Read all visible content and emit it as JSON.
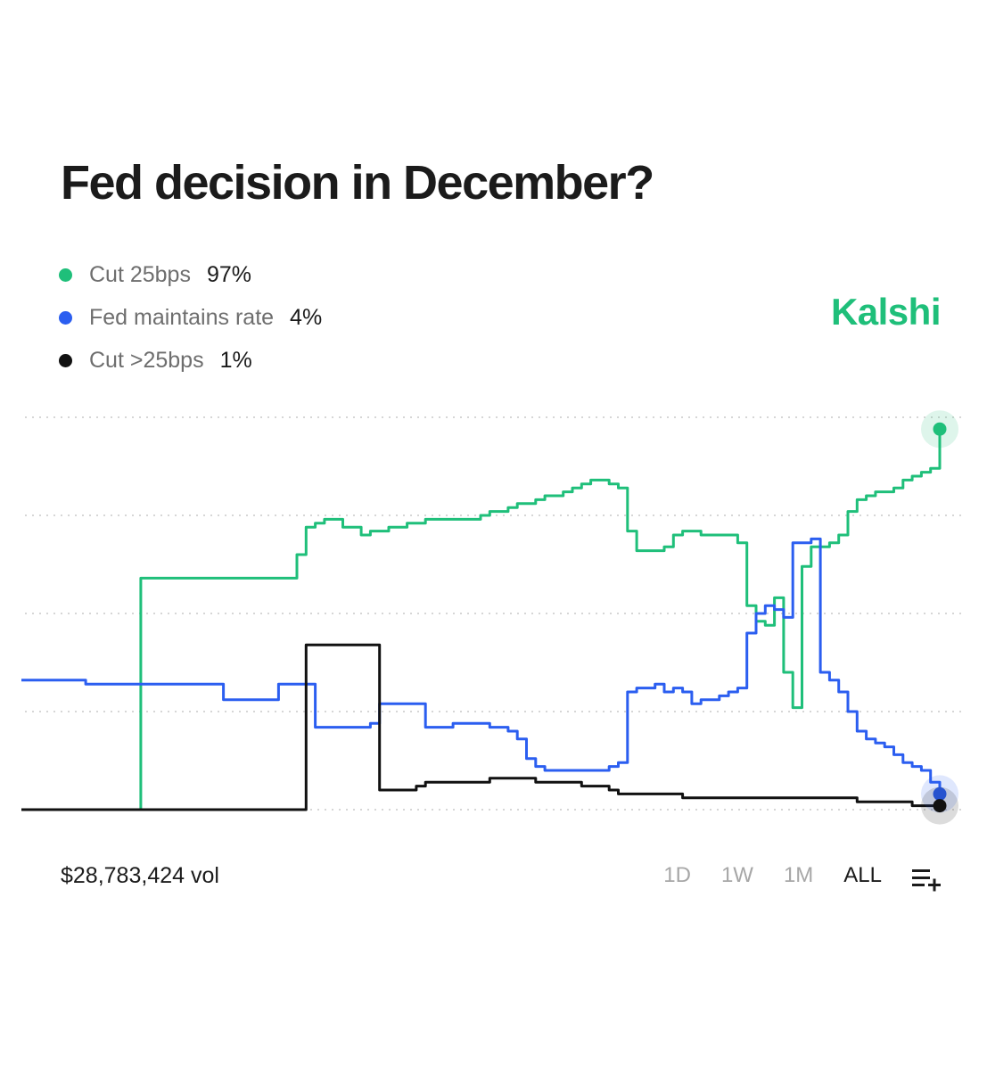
{
  "title": "Fed decision in December?",
  "brand": "Kalshi",
  "legend": [
    {
      "label": "Cut 25bps",
      "value": "97%",
      "color": "#1fbf7a"
    },
    {
      "label": "Fed maintains rate",
      "value": "4%",
      "color": "#2b5ef0"
    },
    {
      "label": "Cut >25bps",
      "value": "1%",
      "color": "#111111"
    }
  ],
  "volume": "$28,783,424 vol",
  "ranges": [
    {
      "label": "1D",
      "active": false
    },
    {
      "label": "1W",
      "active": false
    },
    {
      "label": "1M",
      "active": false
    },
    {
      "label": "ALL",
      "active": true
    }
  ],
  "settings_icon": "list-add-icon",
  "chart_data": {
    "type": "line",
    "title": "Fed decision in December?",
    "xlabel": "",
    "ylabel": "",
    "x": [
      0,
      1,
      2,
      3,
      4,
      5,
      6,
      7,
      8,
      9,
      10,
      11,
      12,
      13,
      14,
      15,
      16,
      17,
      18,
      19,
      20,
      21,
      22,
      23,
      24,
      25,
      26,
      27,
      28,
      29,
      30,
      31,
      32,
      33,
      34,
      35,
      36,
      37,
      38,
      39,
      40,
      41,
      42,
      43,
      44,
      45,
      46,
      47,
      48,
      49,
      50,
      51,
      52,
      53,
      54,
      55,
      56,
      57,
      58,
      59,
      60,
      61,
      62,
      63,
      64,
      65,
      66,
      67,
      68,
      69,
      70,
      71,
      72,
      73,
      74,
      75,
      76,
      77,
      78,
      79,
      80,
      81,
      82,
      83,
      84,
      85,
      86,
      87,
      88,
      89,
      90,
      91,
      92,
      93,
      94,
      95,
      96,
      97,
      98,
      99,
      100
    ],
    "ylim": [
      0,
      100
    ],
    "grid": true,
    "series": [
      {
        "name": "Cut 25bps",
        "color": "#1fbf7a",
        "values": [
          0,
          0,
          0,
          0,
          0,
          0,
          0,
          0,
          0,
          0,
          0,
          0,
          0,
          59,
          59,
          59,
          59,
          59,
          59,
          59,
          59,
          59,
          59,
          59,
          59,
          59,
          59,
          59,
          59,
          59,
          65,
          72,
          73,
          74,
          74,
          72,
          72,
          70,
          71,
          71,
          72,
          72,
          73,
          73,
          74,
          74,
          74,
          74,
          74,
          74,
          75,
          76,
          76,
          77,
          78,
          78,
          79,
          80,
          80,
          81,
          82,
          83,
          84,
          84,
          83,
          82,
          71,
          66,
          66,
          66,
          67,
          70,
          71,
          71,
          70,
          70,
          70,
          70,
          68,
          52,
          48,
          47,
          54,
          35,
          26,
          62,
          67,
          67,
          68,
          70,
          76,
          79,
          80,
          81,
          81,
          82,
          84,
          85,
          86,
          87,
          97
        ]
      },
      {
        "name": "Fed maintains rate",
        "color": "#2b5ef0",
        "values": [
          33,
          33,
          33,
          33,
          33,
          33,
          33,
          32,
          32,
          32,
          32,
          32,
          32,
          32,
          32,
          32,
          32,
          32,
          32,
          32,
          32,
          32,
          28,
          28,
          28,
          28,
          28,
          28,
          32,
          32,
          32,
          32,
          21,
          21,
          21,
          21,
          21,
          21,
          22,
          27,
          27,
          27,
          27,
          27,
          21,
          21,
          21,
          22,
          22,
          22,
          22,
          21,
          21,
          20,
          18,
          13,
          11,
          10,
          10,
          10,
          10,
          10,
          10,
          10,
          11,
          12,
          30,
          31,
          31,
          32,
          30,
          31,
          30,
          27,
          28,
          28,
          29,
          30,
          31,
          45,
          50,
          52,
          51,
          49,
          68,
          68,
          69,
          35,
          33,
          30,
          25,
          20,
          18,
          17,
          16,
          14,
          12,
          11,
          10,
          7,
          4
        ]
      },
      {
        "name": "Cut >25bps",
        "color": "#111111",
        "values": [
          0,
          0,
          0,
          0,
          0,
          0,
          0,
          0,
          0,
          0,
          0,
          0,
          0,
          0,
          0,
          0,
          0,
          0,
          0,
          0,
          0,
          0,
          0,
          0,
          0,
          0,
          0,
          0,
          0,
          0,
          0,
          42,
          42,
          42,
          42,
          42,
          42,
          42,
          42,
          5,
          5,
          5,
          5,
          6,
          7,
          7,
          7,
          7,
          7,
          7,
          7,
          8,
          8,
          8,
          8,
          8,
          7,
          7,
          7,
          7,
          7,
          6,
          6,
          6,
          5,
          4,
          4,
          4,
          4,
          4,
          4,
          4,
          3,
          3,
          3,
          3,
          3,
          3,
          3,
          3,
          3,
          3,
          3,
          3,
          3,
          3,
          3,
          3,
          3,
          3,
          3,
          2,
          2,
          2,
          2,
          2,
          2,
          1,
          1,
          1,
          1
        ]
      }
    ]
  }
}
